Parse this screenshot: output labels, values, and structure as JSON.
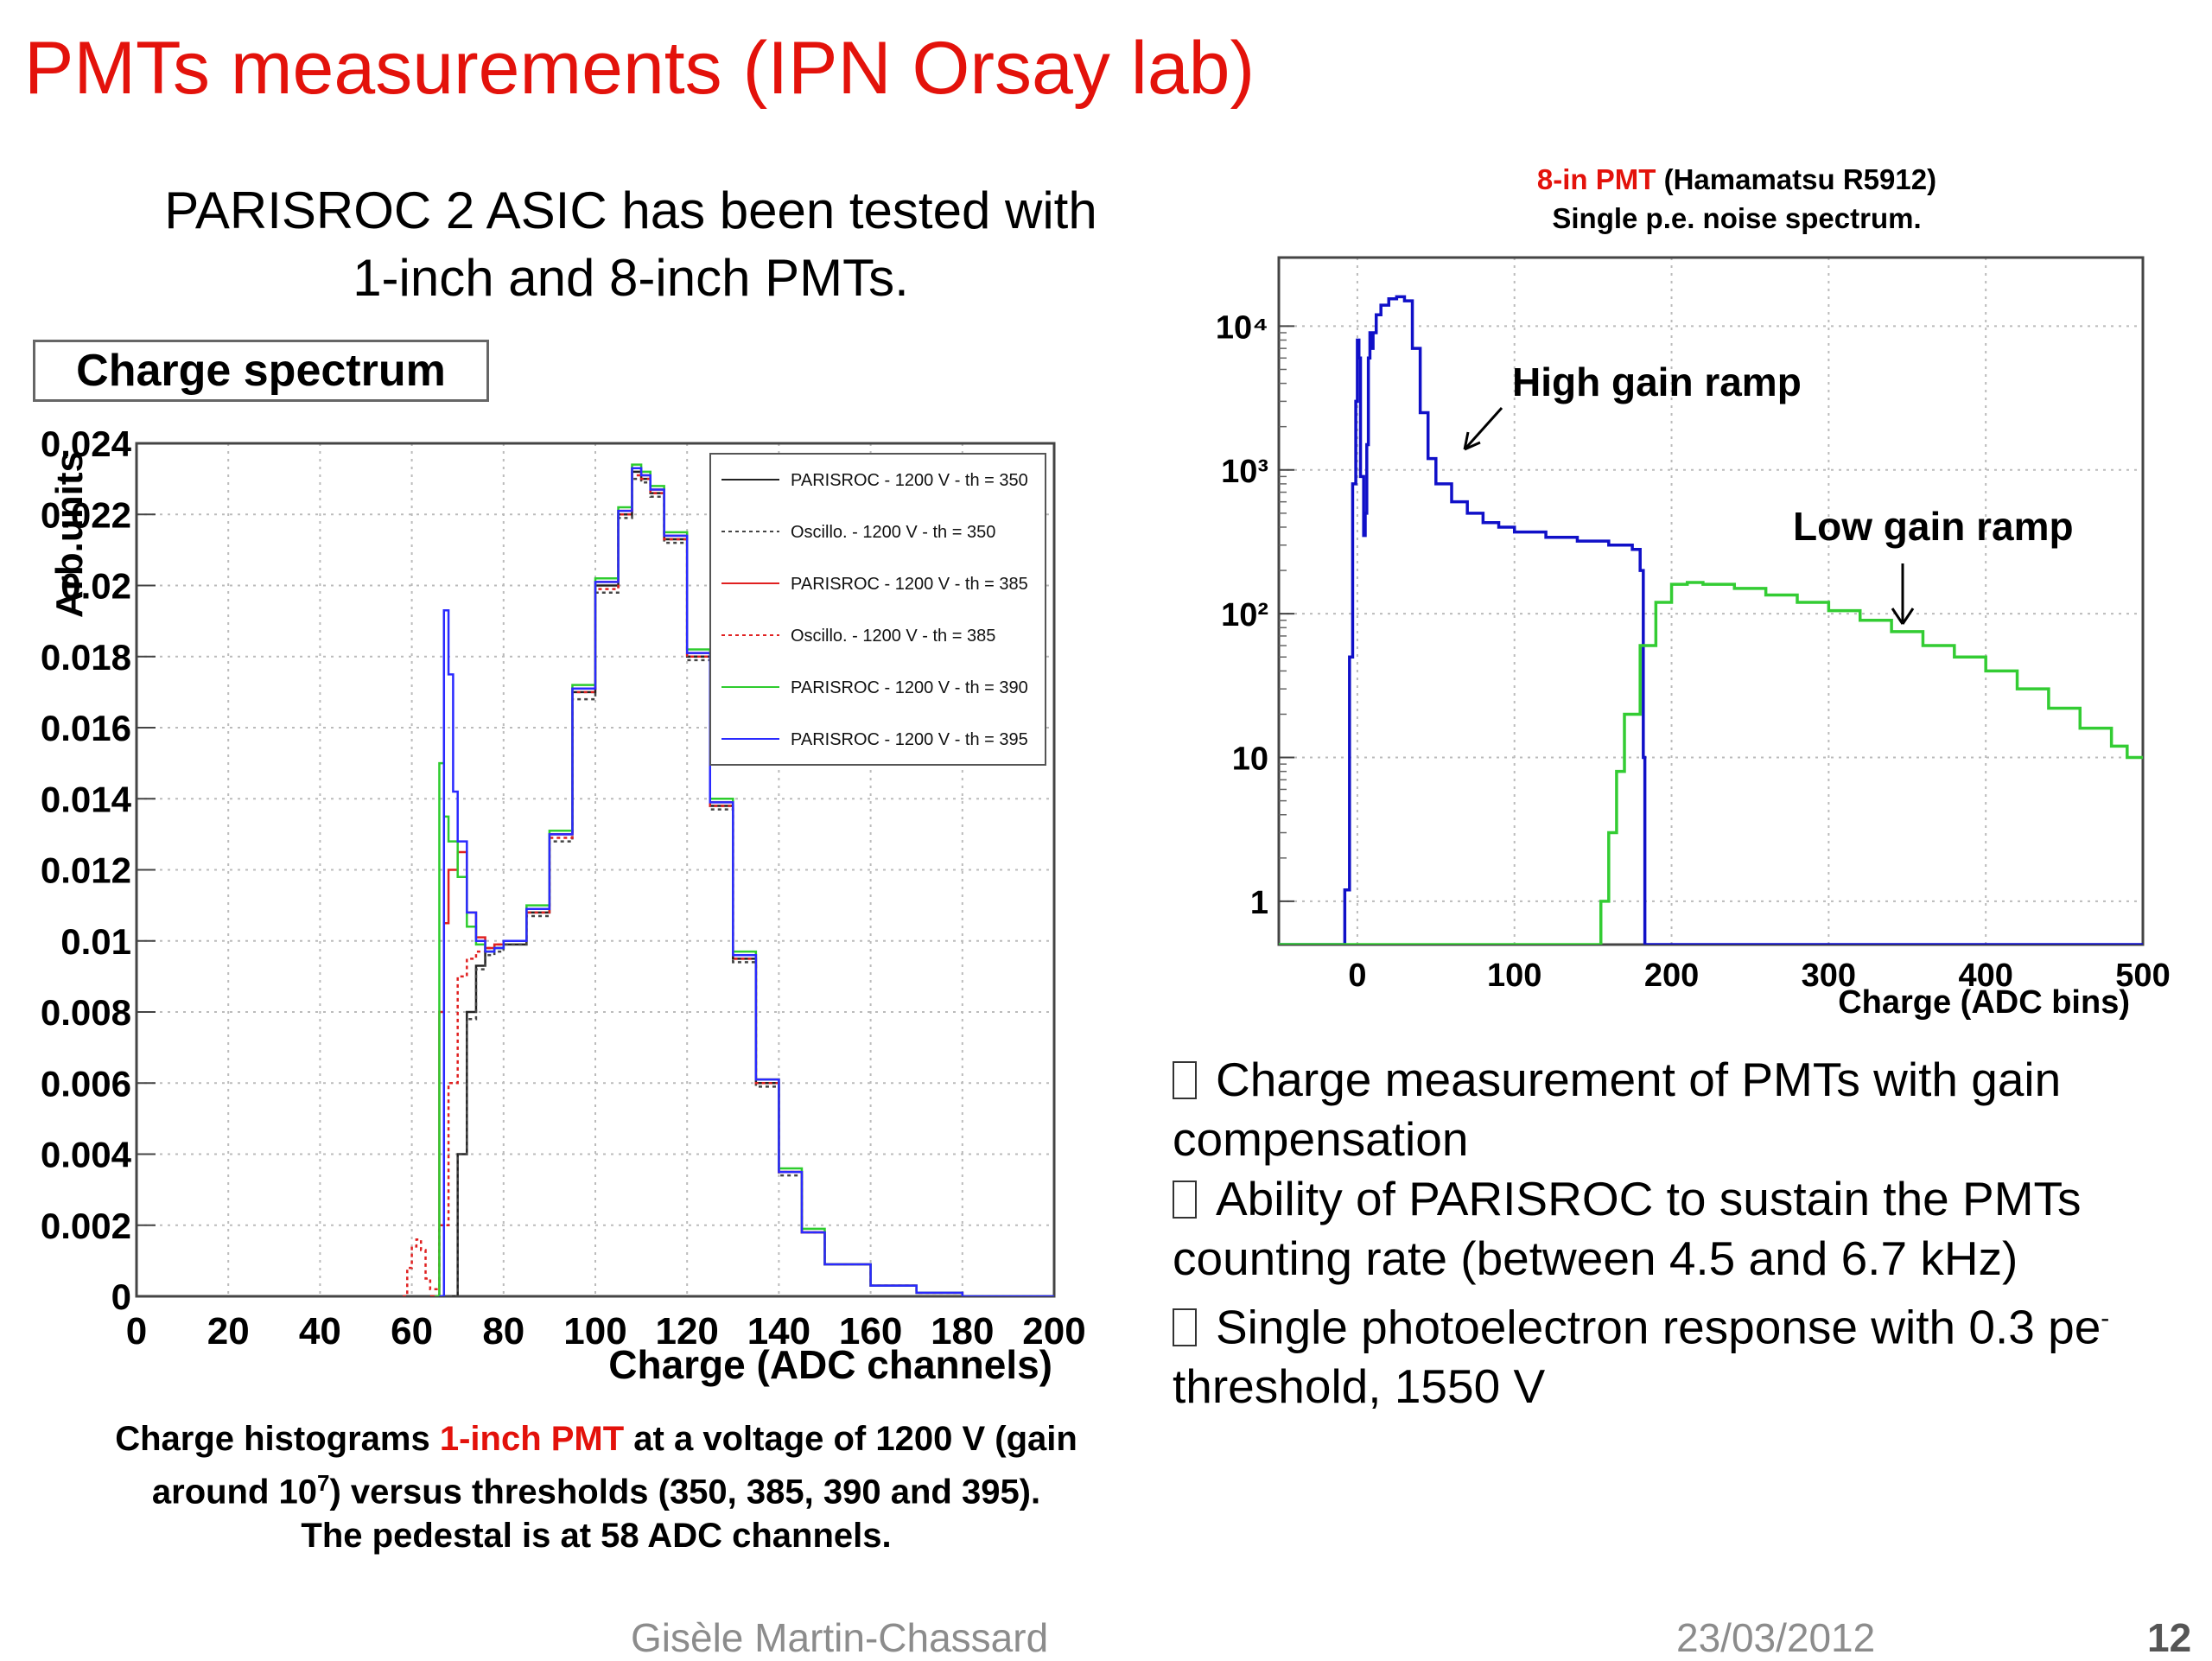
{
  "slide": {
    "title": "PMTs measurements (IPN Orsay lab)",
    "intro_line1": "PARISROC 2 ASIC has been tested with",
    "intro_line2": "1-inch and 8-inch PMTs.",
    "box_label": "Charge spectrum",
    "caption": {
      "part1": "Charge histograms ",
      "highlight": "1-inch PMT",
      "part2": " at a voltage of 1200 V (gain",
      "line2_a": "around 10",
      "line2_sup": "7",
      "line2_b": ") versus thresholds (350, 385, 390 and 395).",
      "line3": "The pedestal is at 58 ADC channels."
    },
    "pmt_title_highlight": "8-in PMT",
    "pmt_title_rest": " (Hamamatsu R5912)",
    "pmt_subtitle": "Single p.e. noise spectrum.",
    "bullets": [
      "Charge measurement of PMTs with gain compensation",
      "Ability of PARISROC to sustain the PMTs counting rate (between 4.5 and 6.7 kHz)",
      "Single photoelectron response with 0.3 pe"
    ],
    "bullet3_sup": "-",
    "bullet3_tail": "threshold, 1550 V",
    "footer": {
      "author": "Gisèle Martin-Chassard",
      "date": "23/03/2012",
      "page": "12"
    }
  },
  "chart_data": [
    {
      "type": "line",
      "xlabel": "Charge (ADC channels)",
      "ylabel": "Arb.units",
      "xlim": [
        0,
        200
      ],
      "ylim": [
        0,
        0.024
      ],
      "xticks": [
        "0",
        "20",
        "40",
        "60",
        "80",
        "100",
        "120",
        "140",
        "160",
        "180",
        "200"
      ],
      "yticks": [
        "0",
        "0.002",
        "0.004",
        "0.006",
        "0.008",
        "0.01",
        "0.012",
        "0.014",
        "0.016",
        "0.018",
        "0.02",
        "0.022",
        "0.024"
      ],
      "grid": true,
      "legend_position": "top-right",
      "series": [
        {
          "name": "PARISROC - 1200 V - th = 350",
          "color": "#222222",
          "dash": false,
          "x": [
            68,
            70,
            72,
            74,
            76,
            78,
            80,
            85,
            90,
            95,
            100,
            105,
            108,
            110,
            112,
            115,
            120,
            125,
            130,
            135,
            140,
            145,
            150,
            160,
            170,
            180,
            190,
            200
          ],
          "y": [
            0,
            0.004,
            0.008,
            0.0093,
            0.0097,
            0.0098,
            0.0099,
            0.0108,
            0.013,
            0.017,
            0.02,
            0.022,
            0.0232,
            0.023,
            0.0226,
            0.0213,
            0.018,
            0.0138,
            0.0095,
            0.006,
            0.0035,
            0.0018,
            0.0009,
            0.0003,
            0.0001,
            0,
            0,
            0
          ]
        },
        {
          "name": "Oscillo. - 1200 V - th = 350",
          "color": "#444444",
          "dash": true,
          "x": [
            68,
            70,
            72,
            74,
            76,
            78,
            80,
            85,
            90,
            95,
            100,
            105,
            108,
            110,
            112,
            115,
            120,
            125,
            130,
            135,
            140,
            145,
            150,
            160,
            170,
            180,
            190,
            200
          ],
          "y": [
            0,
            0.004,
            0.0078,
            0.0092,
            0.0096,
            0.0097,
            0.0099,
            0.0107,
            0.0128,
            0.0168,
            0.0198,
            0.0219,
            0.023,
            0.0229,
            0.0225,
            0.0212,
            0.0179,
            0.0137,
            0.0094,
            0.0059,
            0.0034,
            0.0018,
            0.0009,
            0.0003,
            0.0001,
            0,
            0,
            0
          ]
        },
        {
          "name": "PARISROC - 1200 V - th = 385",
          "color": "#e02020",
          "dash": false,
          "x": [
            64,
            66,
            67,
            68,
            70,
            72,
            74,
            76,
            78,
            80,
            85,
            90,
            95,
            100,
            105,
            108,
            110,
            112,
            115,
            120,
            125,
            130,
            135,
            140,
            145,
            150,
            160,
            170,
            180,
            200
          ],
          "y": [
            0,
            0.008,
            0.0105,
            0.012,
            0.0125,
            0.0108,
            0.0101,
            0.0098,
            0.0099,
            0.01,
            0.0109,
            0.013,
            0.0171,
            0.0201,
            0.0221,
            0.0233,
            0.0231,
            0.0227,
            0.0214,
            0.0181,
            0.0139,
            0.0096,
            0.0061,
            0.0035,
            0.0018,
            0.0009,
            0.0003,
            0.0001,
            0,
            0
          ]
        },
        {
          "name": "Oscillo. - 1200 V - th = 385",
          "color": "#e02020",
          "dash": true,
          "x": [
            58,
            59,
            60,
            61,
            62,
            63,
            64,
            66,
            68,
            70,
            72,
            74,
            76,
            78,
            80,
            85,
            90,
            95,
            100,
            105,
            108,
            110,
            112,
            115,
            120,
            125,
            130,
            135,
            140,
            145,
            150,
            160,
            170,
            180,
            200
          ],
          "y": [
            0,
            0.0008,
            0.0014,
            0.0016,
            0.0013,
            0.0005,
            0.0002,
            0.002,
            0.006,
            0.009,
            0.0095,
            0.0097,
            0.0098,
            0.0099,
            0.01,
            0.0108,
            0.0129,
            0.017,
            0.0199,
            0.022,
            0.0231,
            0.023,
            0.0226,
            0.0213,
            0.018,
            0.0138,
            0.0095,
            0.006,
            0.0035,
            0.0018,
            0.0009,
            0.0003,
            0.0001,
            0,
            0
          ]
        },
        {
          "name": "PARISROC - 1200 V - th = 390",
          "color": "#2ecc2e",
          "dash": false,
          "x": [
            65,
            66,
            67,
            68,
            70,
            72,
            74,
            76,
            78,
            80,
            85,
            90,
            95,
            100,
            105,
            108,
            110,
            112,
            115,
            120,
            125,
            130,
            135,
            140,
            145,
            150,
            160,
            170,
            180,
            200
          ],
          "y": [
            0,
            0.015,
            0.0135,
            0.0128,
            0.0118,
            0.0104,
            0.0099,
            0.0097,
            0.0098,
            0.01,
            0.011,
            0.0131,
            0.0172,
            0.0202,
            0.0222,
            0.0234,
            0.0232,
            0.0228,
            0.0215,
            0.0182,
            0.014,
            0.0097,
            0.0061,
            0.0036,
            0.0019,
            0.0009,
            0.0003,
            0.0001,
            0,
            0
          ]
        },
        {
          "name": "PARISROC - 1200 V - th = 395",
          "color": "#2a2aff",
          "dash": false,
          "x": [
            66,
            67,
            68,
            69,
            70,
            72,
            74,
            76,
            78,
            80,
            85,
            90,
            95,
            100,
            105,
            108,
            110,
            112,
            115,
            120,
            125,
            130,
            135,
            140,
            145,
            150,
            160,
            170,
            180,
            200
          ],
          "y": [
            0,
            0.0193,
            0.0175,
            0.0142,
            0.0128,
            0.0108,
            0.01,
            0.0097,
            0.0098,
            0.01,
            0.0109,
            0.013,
            0.0171,
            0.0201,
            0.0221,
            0.0233,
            0.0231,
            0.0227,
            0.0214,
            0.0181,
            0.0139,
            0.0096,
            0.0061,
            0.0035,
            0.0018,
            0.0009,
            0.0003,
            0.0001,
            0,
            0
          ]
        }
      ]
    },
    {
      "type": "line",
      "title": "8-in PMT (Hamamatsu R5912) Single p.e. noise spectrum.",
      "xlabel": "Charge (ADC bins)",
      "ylabel": "",
      "xlim": [
        -50,
        500
      ],
      "ylim": [
        0.5,
        30000
      ],
      "log_y": true,
      "xticks": [
        "0",
        "100",
        "200",
        "300",
        "400",
        "500"
      ],
      "ytick_values": [
        1,
        10,
        100,
        1000,
        10000
      ],
      "yticks": [
        "1",
        "10",
        "10²",
        "10³",
        "10⁴"
      ],
      "grid": true,
      "annotations": [
        "High gain ramp",
        "Low gain ramp"
      ],
      "series": [
        {
          "name": "",
          "color": "#1010c8",
          "x": [
            -50,
            -10,
            -8,
            -5,
            -3,
            -1,
            0,
            1,
            2,
            4,
            5,
            6,
            7,
            8,
            9,
            10,
            12,
            15,
            20,
            25,
            28,
            30,
            35,
            40,
            45,
            50,
            60,
            70,
            80,
            90,
            100,
            120,
            140,
            160,
            175,
            180,
            182,
            183,
            200,
            500
          ],
          "y": [
            0.5,
            0.5,
            1.2,
            50,
            800,
            3000,
            8000,
            6000,
            900,
            350,
            500,
            1500,
            6000,
            9000,
            7000,
            9000,
            12000,
            14000,
            15500,
            16000,
            16000,
            15000,
            7000,
            2500,
            1200,
            800,
            600,
            500,
            430,
            400,
            370,
            340,
            320,
            300,
            280,
            200,
            10,
            0.5,
            0.5,
            0.5
          ]
        },
        {
          "name": "",
          "color": "#33cc33",
          "x": [
            -50,
            150,
            155,
            160,
            165,
            170,
            180,
            190,
            200,
            210,
            220,
            240,
            260,
            280,
            300,
            320,
            340,
            360,
            380,
            400,
            420,
            440,
            460,
            480,
            490,
            500
          ],
          "y": [
            0.5,
            0.5,
            1,
            3,
            8,
            20,
            60,
            120,
            160,
            165,
            160,
            150,
            135,
            120,
            105,
            90,
            75,
            60,
            50,
            40,
            30,
            22,
            16,
            12,
            10,
            10
          ]
        }
      ]
    }
  ]
}
